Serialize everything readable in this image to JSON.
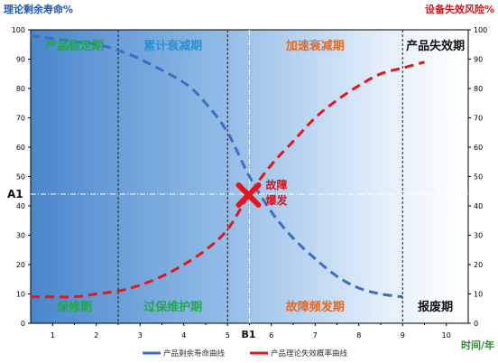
{
  "chart_data": {
    "type": "line",
    "title": "",
    "left_axis_label": "理论剩余寿命%",
    "right_axis_label": "设备失效风险%",
    "xlabel": "时间/年",
    "xlim": [
      0.5,
      10.5
    ],
    "ylim": [
      0,
      100
    ],
    "x_ticks": [
      "1",
      "2",
      "3",
      "4",
      "5",
      "6",
      "7",
      "8",
      "9",
      "10"
    ],
    "y_ticks": [
      "0",
      "10",
      "20",
      "30",
      "40",
      "50",
      "60",
      "70",
      "80",
      "90",
      "100"
    ],
    "phase_dividers_x": [
      2.5,
      5.0,
      9.0
    ],
    "phases_top": [
      "产品稳定期",
      "累计衰减期",
      "加速衰减期",
      "产品失效期"
    ],
    "phases_bottom": [
      "保修期",
      "过保维护期",
      "故障频发期",
      "报废期"
    ],
    "reference_x_label": "B1",
    "reference_x": 5.5,
    "reference_y_label": "A1",
    "reference_y": 44,
    "annotation": "故障\n爆发",
    "legend": [
      "产品剩余寿命曲线",
      "产品理论失效概率曲线"
    ],
    "series": [
      {
        "name": "产品剩余寿命曲线",
        "color": "#3a6fc4",
        "x": [
          0.5,
          1.0,
          2.0,
          2.5,
          3.0,
          4.0,
          4.5,
          5.0,
          5.5,
          6.0,
          6.5,
          7.0,
          7.5,
          8.0,
          8.5,
          9.0
        ],
        "y": [
          98,
          97,
          95,
          93,
          90,
          82,
          75,
          65,
          50,
          38,
          29,
          22,
          16,
          12,
          10,
          9
        ]
      },
      {
        "name": "产品理论失效概率曲线",
        "color": "#e8141a",
        "x": [
          0.5,
          1.0,
          1.5,
          2.0,
          2.5,
          3.0,
          3.5,
          4.0,
          4.5,
          5.0,
          5.5,
          6.0,
          6.5,
          7.0,
          7.5,
          8.0,
          8.5,
          9.0,
          9.5
        ],
        "y": [
          9,
          9,
          9,
          10,
          11,
          13,
          16,
          20,
          25,
          32,
          44,
          54,
          62,
          70,
          76,
          81,
          85,
          87,
          89
        ]
      }
    ]
  }
}
